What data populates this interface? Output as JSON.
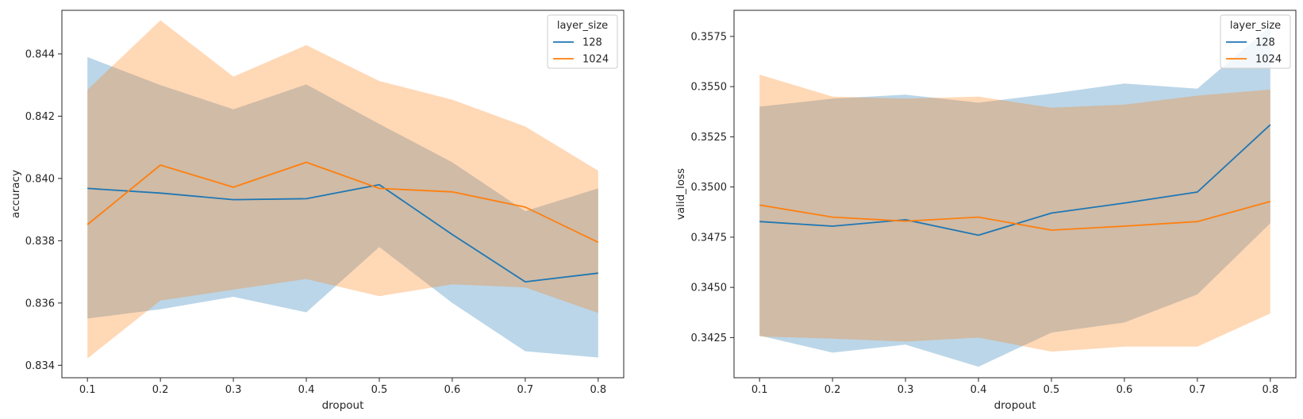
{
  "chart_data": [
    {
      "type": "line",
      "x": [
        0.1,
        0.2,
        0.3,
        0.4,
        0.5,
        0.6,
        0.7,
        0.8
      ],
      "xlabel": "dropout",
      "ylabel": "accuracy",
      "xlim": [
        0.065,
        0.835
      ],
      "ylim": [
        0.8336,
        0.8454
      ],
      "xticks": [
        "0.1",
        "0.2",
        "0.3",
        "0.4",
        "0.5",
        "0.6",
        "0.7",
        "0.8"
      ],
      "yticks": [
        {
          "value": 0.834,
          "label": "0.834"
        },
        {
          "value": 0.836,
          "label": "0.836"
        },
        {
          "value": 0.838,
          "label": "0.838"
        },
        {
          "value": 0.84,
          "label": "0.840"
        },
        {
          "value": 0.842,
          "label": "0.842"
        },
        {
          "value": 0.844,
          "label": "0.844"
        }
      ],
      "grid": false,
      "legend": {
        "title": "layer_size",
        "position": "top-right"
      },
      "series": [
        {
          "name": "128",
          "color": "#1f77b4",
          "band_color": "#a6c8e1",
          "values": [
            0.83968,
            0.83953,
            0.83932,
            0.83935,
            0.8398,
            0.8382,
            0.83668,
            0.83696
          ],
          "lower": [
            0.8355,
            0.8358,
            0.8362,
            0.8357,
            0.8378,
            0.836,
            0.83445,
            0.83425
          ],
          "upper": [
            0.8439,
            0.843,
            0.84222,
            0.84302,
            0.84175,
            0.84052,
            0.83895,
            0.83968
          ]
        },
        {
          "name": "1024",
          "color": "#ff7f0e",
          "band_color": "#ffc998",
          "values": [
            0.83852,
            0.84043,
            0.83972,
            0.84052,
            0.83968,
            0.83957,
            0.83908,
            0.83795
          ],
          "lower": [
            0.83422,
            0.83608,
            0.83643,
            0.83677,
            0.83622,
            0.8366,
            0.8365,
            0.83568
          ],
          "upper": [
            0.84285,
            0.84508,
            0.84327,
            0.84428,
            0.84313,
            0.84253,
            0.84167,
            0.84025
          ]
        }
      ]
    },
    {
      "type": "line",
      "x": [
        0.1,
        0.2,
        0.3,
        0.4,
        0.5,
        0.6,
        0.7,
        0.8
      ],
      "xlabel": "dropout",
      "ylabel": "valid_loss",
      "xlim": [
        0.065,
        0.835
      ],
      "ylim": [
        0.3405,
        0.3588
      ],
      "xticks": [
        "0.1",
        "0.2",
        "0.3",
        "0.4",
        "0.5",
        "0.6",
        "0.7",
        "0.8"
      ],
      "yticks": [
        {
          "value": 0.3425,
          "label": "0.3425"
        },
        {
          "value": 0.345,
          "label": "0.3450"
        },
        {
          "value": 0.3475,
          "label": "0.3475"
        },
        {
          "value": 0.35,
          "label": "0.3500"
        },
        {
          "value": 0.3525,
          "label": "0.3525"
        },
        {
          "value": 0.355,
          "label": "0.3550"
        },
        {
          "value": 0.3575,
          "label": "0.3575"
        }
      ],
      "grid": false,
      "legend": {
        "title": "layer_size",
        "position": "top-right"
      },
      "series": [
        {
          "name": "128",
          "color": "#1f77b4",
          "band_color": "#a6c8e1",
          "values": [
            0.34828,
            0.34805,
            0.34837,
            0.3476,
            0.3487,
            0.3492,
            0.34975,
            0.3531
          ],
          "lower": [
            0.3426,
            0.34175,
            0.34215,
            0.34105,
            0.34275,
            0.34325,
            0.34465,
            0.3482
          ],
          "upper": [
            0.354,
            0.3544,
            0.3546,
            0.3542,
            0.35465,
            0.35515,
            0.3549,
            0.358
          ]
        },
        {
          "name": "1024",
          "color": "#ff7f0e",
          "band_color": "#ffc998",
          "values": [
            0.3491,
            0.3485,
            0.3483,
            0.3485,
            0.34785,
            0.34805,
            0.34828,
            0.34928
          ],
          "lower": [
            0.34255,
            0.34245,
            0.3423,
            0.3425,
            0.3418,
            0.34205,
            0.34205,
            0.3437
          ],
          "upper": [
            0.3556,
            0.3545,
            0.3544,
            0.3545,
            0.35395,
            0.3541,
            0.35455,
            0.35485
          ]
        }
      ]
    }
  ]
}
